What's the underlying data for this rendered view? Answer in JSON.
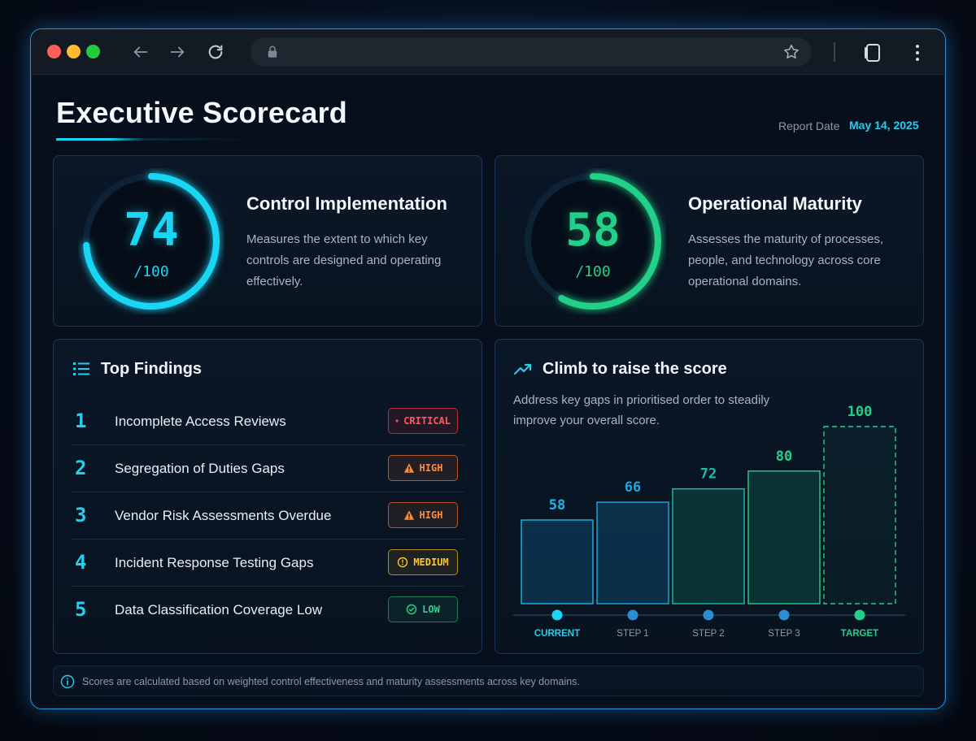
{
  "page": {
    "title": "Executive Scorecard",
    "report_date_label": "Report Date",
    "report_date": "May 14, 2025"
  },
  "browser": {
    "url": ""
  },
  "metrics": [
    {
      "title": "Control Implementation",
      "value": "74",
      "max": "/100",
      "score": 74,
      "color": "#1ad6f5",
      "description": "Measures the extent to which key controls are designed and operating effectively."
    },
    {
      "title": "Operational Maturity",
      "value": "58",
      "max": "/100",
      "score": 58,
      "color": "#22d08a",
      "description": "Assesses the maturity of processes, people, and technology across core operational domains."
    }
  ],
  "findings": {
    "title": "Top Findings",
    "items": [
      {
        "num": "1",
        "text": "Incomplete Access Reviews",
        "severity": "CRITICAL",
        "icon": "shield-alert-icon"
      },
      {
        "num": "2",
        "text": "Segregation of Duties Gaps",
        "severity": "HIGH",
        "icon": "warning-triangle-icon"
      },
      {
        "num": "3",
        "text": "Vendor Risk Assessments Overdue",
        "severity": "HIGH",
        "icon": "warning-triangle-icon"
      },
      {
        "num": "4",
        "text": "Incident Response Testing Gaps",
        "severity": "MEDIUM",
        "icon": "alert-circle-icon"
      },
      {
        "num": "5",
        "text": "Data Classification Coverage Low",
        "severity": "LOW",
        "icon": "check-circle-icon"
      }
    ]
  },
  "climb": {
    "title": "Climb to raise the score",
    "description": "Address key gaps in prioritised order to steadily improve your overall score."
  },
  "chart_data": {
    "type": "bar",
    "title": "Climb to raise the score",
    "categories": [
      "CURRENT",
      "STEP 1",
      "STEP 2",
      "STEP 3",
      "TARGET"
    ],
    "values": [
      58,
      66,
      72,
      80,
      100
    ],
    "ylim": [
      0,
      100
    ],
    "colors": [
      "#1ab8e8",
      "#1aa8e0",
      "#1abfa8",
      "#22d08a",
      "#22d08a"
    ]
  },
  "footer": {
    "note": "Scores are calculated based on weighted control effectiveness and maturity assessments across key domains."
  }
}
